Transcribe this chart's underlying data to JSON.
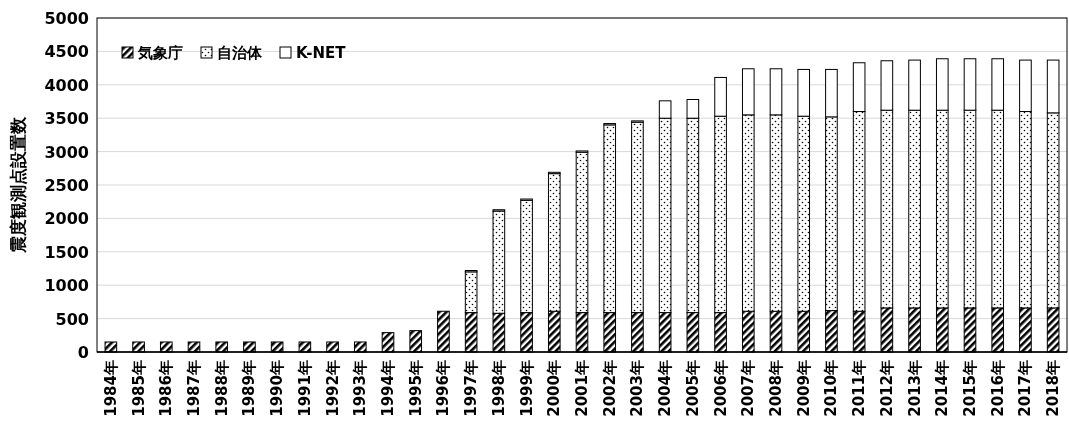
{
  "chart_data": {
    "type": "bar",
    "stacked": true,
    "ylabel": "震度観測点設置数",
    "categories": [
      "1984年",
      "1985年",
      "1986年",
      "1987年",
      "1988年",
      "1989年",
      "1990年",
      "1991年",
      "1992年",
      "1993年",
      "1994年",
      "1995年",
      "1996年",
      "1997年",
      "1998年",
      "1999年",
      "2000年",
      "2001年",
      "2002年",
      "2003年",
      "2004年",
      "2005年",
      "2006年",
      "2007年",
      "2008年",
      "2009年",
      "2010年",
      "2011年",
      "2012年",
      "2013年",
      "2014年",
      "2015年",
      "2016年",
      "2017年",
      "2018年"
    ],
    "series": [
      {
        "name": "気象庁",
        "color": "#000000",
        "values": [
          150,
          150,
          150,
          150,
          150,
          150,
          150,
          150,
          150,
          150,
          290,
          320,
          610,
          590,
          580,
          590,
          610,
          590,
          590,
          590,
          590,
          590,
          590,
          610,
          610,
          610,
          620,
          610,
          660,
          660,
          660,
          660,
          660,
          660,
          660
        ]
      },
      {
        "name": "自治体",
        "color": "#000000",
        "values": [
          0,
          0,
          0,
          0,
          0,
          0,
          0,
          0,
          0,
          0,
          0,
          0,
          0,
          610,
          1530,
          1680,
          2060,
          2400,
          2810,
          2850,
          2910,
          2910,
          2940,
          2940,
          2940,
          2920,
          2900,
          2990,
          2960,
          2960,
          2960,
          2960,
          2960,
          2940,
          2920
        ]
      },
      {
        "name": "K-NET",
        "color": "#ffffff",
        "values": [
          0,
          0,
          0,
          0,
          0,
          0,
          0,
          0,
          0,
          0,
          0,
          0,
          0,
          20,
          20,
          20,
          20,
          20,
          20,
          20,
          260,
          280,
          580,
          690,
          690,
          700,
          710,
          730,
          740,
          750,
          770,
          770,
          770,
          770,
          790
        ]
      }
    ],
    "ylim": [
      0,
      5000
    ],
    "yticks": [
      0,
      500,
      1000,
      1500,
      2000,
      2500,
      3000,
      3500,
      4000,
      4500,
      5000
    ],
    "grid": "y",
    "legend": "top left"
  }
}
